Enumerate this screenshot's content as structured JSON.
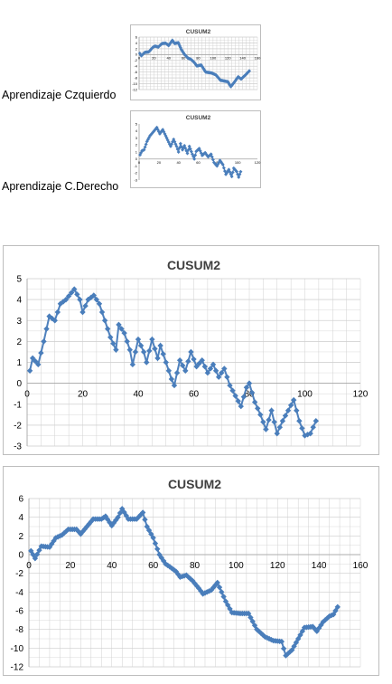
{
  "captions": {
    "left": "Aprendizaje Czquierdo",
    "right": "Aprendizaje C.Derecho"
  },
  "colors": {
    "series": "#4F81BD",
    "marker": "#4A7EBB",
    "grid": "#d0d0d0",
    "axis": "#a0a0a0"
  },
  "chart_data": [
    {
      "id": "thumb1",
      "type": "line",
      "title": "CUSUM2",
      "xlim": [
        0,
        160
      ],
      "xticks": [
        0,
        20,
        40,
        60,
        80,
        100,
        120,
        140,
        160
      ],
      "ylim": [
        -12,
        6
      ],
      "yticks": [
        6,
        4,
        2,
        0,
        -2,
        -4,
        -6,
        -8,
        -10,
        -12
      ],
      "grid": true,
      "anchors": [
        [
          1,
          0.4
        ],
        [
          3,
          -0.4
        ],
        [
          8,
          0.8
        ],
        [
          13,
          0.9
        ],
        [
          19,
          2.6
        ],
        [
          22,
          2.9
        ],
        [
          26,
          2.6
        ],
        [
          31,
          3.8
        ],
        [
          36,
          3.9
        ],
        [
          40,
          3.1
        ],
        [
          45,
          4.9
        ],
        [
          48,
          3.8
        ],
        [
          53,
          4.1
        ],
        [
          57,
          1.8
        ],
        [
          61,
          0.2
        ],
        [
          66,
          -1.2
        ],
        [
          70,
          -1.6
        ],
        [
          75,
          -2.8
        ],
        [
          78,
          -3.9
        ],
        [
          84,
          -3.6
        ],
        [
          90,
          -6.0
        ],
        [
          98,
          -6.3
        ],
        [
          104,
          -7.0
        ],
        [
          110,
          -8.8
        ],
        [
          120,
          -9.3
        ],
        [
          124,
          -11.0
        ],
        [
          129,
          -9.4
        ],
        [
          134,
          -7.6
        ],
        [
          138,
          -8.4
        ],
        [
          145,
          -6.7
        ],
        [
          149,
          -5.6
        ]
      ]
    },
    {
      "id": "thumb2",
      "type": "line",
      "title": "CUSUM2",
      "xlim": [
        0,
        120
      ],
      "xticks": [
        0,
        20,
        40,
        60,
        80,
        100,
        120
      ],
      "ylim": [
        -3,
        5
      ],
      "yticks": [
        5,
        4,
        3,
        2,
        1,
        0,
        -1,
        -2,
        -3
      ],
      "grid": false,
      "anchors": [
        [
          1,
          0.6
        ],
        [
          3,
          1.2
        ],
        [
          5,
          1.3
        ],
        [
          8,
          2.5
        ],
        [
          11,
          3.3
        ],
        [
          14,
          3.8
        ],
        [
          18,
          4.5
        ],
        [
          21,
          3.6
        ],
        [
          24,
          4.2
        ],
        [
          28,
          3.0
        ],
        [
          32,
          1.8
        ],
        [
          35,
          2.8
        ],
        [
          38,
          1.8
        ],
        [
          40,
          1.0
        ],
        [
          42,
          2.2
        ],
        [
          44,
          1.3
        ],
        [
          46,
          1.9
        ],
        [
          49,
          0.8
        ],
        [
          51,
          1.8
        ],
        [
          54,
          0.7
        ],
        [
          56,
          0.0
        ],
        [
          58,
          1.1
        ],
        [
          61,
          1.5
        ],
        [
          64,
          0.5
        ],
        [
          67,
          0.9
        ],
        [
          70,
          0.3
        ],
        [
          73,
          0.7
        ],
        [
          76,
          -0.5
        ],
        [
          79,
          -1.0
        ],
        [
          82,
          -0.2
        ],
        [
          85,
          -0.8
        ],
        [
          88,
          -2.2
        ],
        [
          91,
          -1.5
        ],
        [
          94,
          -2.5
        ],
        [
          96,
          -1.3
        ],
        [
          99,
          -1.8
        ],
        [
          101,
          -2.6
        ],
        [
          103,
          -1.8
        ]
      ]
    },
    {
      "id": "main1",
      "type": "line",
      "title": "CUSUM2",
      "xlim": [
        0,
        120
      ],
      "xticks": [
        0,
        20,
        40,
        60,
        80,
        100,
        120
      ],
      "ylim": [
        -3,
        5
      ],
      "yticks": [
        5,
        4,
        3,
        2,
        1,
        0,
        -1,
        -2,
        -3
      ],
      "grid": true,
      "anchors": [
        [
          1,
          0.6
        ],
        [
          2,
          1.2
        ],
        [
          4,
          0.9
        ],
        [
          6,
          2.0
        ],
        [
          8,
          3.2
        ],
        [
          10,
          3.0
        ],
        [
          12,
          3.8
        ],
        [
          14,
          4.0
        ],
        [
          17,
          4.5
        ],
        [
          19,
          4.0
        ],
        [
          20,
          3.4
        ],
        [
          22,
          4.0
        ],
        [
          24,
          4.2
        ],
        [
          26,
          3.8
        ],
        [
          28,
          3.0
        ],
        [
          30,
          2.2
        ],
        [
          32,
          1.6
        ],
        [
          33,
          2.8
        ],
        [
          35,
          2.4
        ],
        [
          37,
          1.6
        ],
        [
          38,
          0.9
        ],
        [
          40,
          2.1
        ],
        [
          42,
          1.5
        ],
        [
          43,
          1.0
        ],
        [
          45,
          2.1
        ],
        [
          47,
          1.2
        ],
        [
          48,
          1.8
        ],
        [
          50,
          1.0
        ],
        [
          52,
          0.2
        ],
        [
          53,
          -0.1
        ],
        [
          55,
          1.1
        ],
        [
          57,
          0.6
        ],
        [
          59,
          1.5
        ],
        [
          61,
          0.8
        ],
        [
          63,
          1.1
        ],
        [
          65,
          0.5
        ],
        [
          67,
          0.9
        ],
        [
          69,
          0.3
        ],
        [
          71,
          0.7
        ],
        [
          73,
          -0.1
        ],
        [
          75,
          -0.6
        ],
        [
          77,
          -1.1
        ],
        [
          79,
          -0.2
        ],
        [
          80,
          0.0
        ],
        [
          82,
          -0.9
        ],
        [
          84,
          -1.5
        ],
        [
          86,
          -2.2
        ],
        [
          88,
          -1.3
        ],
        [
          90,
          -2.4
        ],
        [
          92,
          -1.8
        ],
        [
          94,
          -1.3
        ],
        [
          96,
          -0.8
        ],
        [
          98,
          -1.8
        ],
        [
          100,
          -2.5
        ],
        [
          102,
          -2.4
        ],
        [
          104,
          -1.8
        ]
      ]
    },
    {
      "id": "main2",
      "type": "line",
      "title": "CUSUM2",
      "xlim": [
        0,
        160
      ],
      "xticks": [
        0,
        20,
        40,
        60,
        80,
        100,
        120,
        140,
        160
      ],
      "ylim": [
        -12,
        6
      ],
      "yticks": [
        6,
        4,
        2,
        0,
        -2,
        -4,
        -6,
        -8,
        -10,
        -12
      ],
      "grid": true,
      "anchors": [
        [
          1,
          0.4
        ],
        [
          3,
          -0.4
        ],
        [
          6,
          0.9
        ],
        [
          10,
          0.8
        ],
        [
          13,
          1.8
        ],
        [
          16,
          2.1
        ],
        [
          19,
          2.7
        ],
        [
          23,
          2.7
        ],
        [
          25,
          2.2
        ],
        [
          28,
          3.0
        ],
        [
          31,
          3.8
        ],
        [
          35,
          3.8
        ],
        [
          37,
          4.1
        ],
        [
          40,
          3.1
        ],
        [
          43,
          4.0
        ],
        [
          45,
          4.9
        ],
        [
          48,
          3.8
        ],
        [
          52,
          3.8
        ],
        [
          55,
          4.5
        ],
        [
          57,
          3.0
        ],
        [
          60,
          1.8
        ],
        [
          63,
          0.0
        ],
        [
          66,
          -1.0
        ],
        [
          68,
          -1.3
        ],
        [
          71,
          -1.8
        ],
        [
          73,
          -2.4
        ],
        [
          76,
          -2.2
        ],
        [
          79,
          -2.8
        ],
        [
          82,
          -3.6
        ],
        [
          84,
          -4.2
        ],
        [
          88,
          -3.8
        ],
        [
          91,
          -3.0
        ],
        [
          95,
          -5.0
        ],
        [
          98,
          -6.2
        ],
        [
          102,
          -6.3
        ],
        [
          106,
          -6.3
        ],
        [
          110,
          -8.0
        ],
        [
          114,
          -8.8
        ],
        [
          118,
          -9.2
        ],
        [
          122,
          -9.3
        ],
        [
          124,
          -10.8
        ],
        [
          127,
          -10.2
        ],
        [
          130,
          -9.0
        ],
        [
          133,
          -7.8
        ],
        [
          137,
          -7.7
        ],
        [
          139,
          -8.2
        ],
        [
          142,
          -7.2
        ],
        [
          145,
          -6.6
        ],
        [
          147,
          -6.4
        ],
        [
          149,
          -5.6
        ]
      ]
    }
  ]
}
